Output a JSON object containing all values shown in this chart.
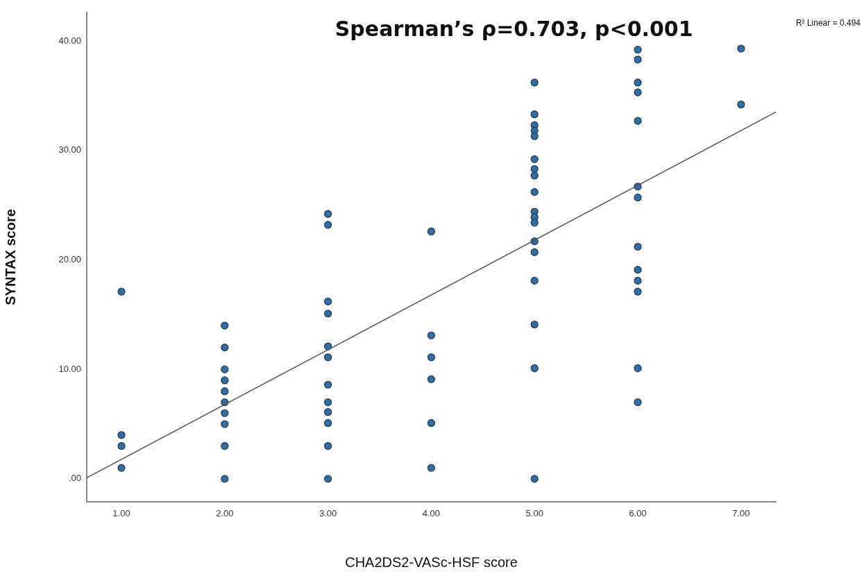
{
  "chart_data": {
    "type": "scatter",
    "xlabel": "CHA2DS2-VASc-HSF score",
    "ylabel": "SYNTAX score",
    "annotations": [
      "Spearman’s ρ=0.703, p<0.001",
      "R² Linear = 0.494"
    ],
    "xlim": [
      0.664,
      7.337
    ],
    "ylim": [
      -2.1,
      42.6
    ],
    "xticks": [
      {
        "value": 1,
        "label": "1.00"
      },
      {
        "value": 2,
        "label": "2.00"
      },
      {
        "value": 3,
        "label": "3.00"
      },
      {
        "value": 4,
        "label": "4.00"
      },
      {
        "value": 5,
        "label": "5.00"
      },
      {
        "value": 6,
        "label": "6.00"
      },
      {
        "value": 7,
        "label": "7.00"
      }
    ],
    "yticks": [
      {
        "value": 0,
        "label": ".00"
      },
      {
        "value": 10,
        "label": "10.00"
      },
      {
        "value": 20,
        "label": "20.00"
      },
      {
        "value": 30,
        "label": "30.00"
      },
      {
        "value": 40,
        "label": "40.00"
      }
    ],
    "grid": false,
    "legend": false,
    "marker": "circle",
    "series": [
      {
        "type": "scatter",
        "color": "#2f6ea6",
        "x": [
          1,
          1,
          1,
          1,
          2,
          2,
          2,
          2,
          2,
          2,
          2,
          2,
          2,
          2,
          3,
          3,
          3,
          3,
          3,
          3,
          3,
          3,
          3,
          3,
          3,
          3,
          4,
          4,
          4,
          4,
          4,
          4,
          5,
          5,
          5,
          5,
          5,
          5,
          5,
          5,
          5,
          5,
          5,
          5,
          5,
          5,
          5,
          5,
          5,
          5,
          6,
          6,
          6,
          6,
          6,
          6,
          6,
          6,
          6,
          6,
          6,
          6,
          6,
          7,
          7
        ],
        "values": [
          17.1,
          4,
          3,
          1,
          14,
          12,
          10,
          9,
          8,
          7,
          6,
          5,
          3,
          0,
          24.2,
          23.2,
          16.2,
          15.1,
          12.1,
          11.1,
          8.6,
          7,
          6.1,
          5.1,
          3,
          0,
          22.6,
          13.1,
          11.1,
          9.1,
          5.1,
          1,
          36.2,
          33.3,
          32.3,
          31.8,
          31.3,
          29.2,
          28.3,
          27.7,
          26.2,
          24.4,
          23.9,
          23.4,
          21.7,
          20.7,
          18.1,
          14.1,
          10.1,
          0,
          39.2,
          38.3,
          36.2,
          35.3,
          32.7,
          26.7,
          25.7,
          21.2,
          19.1,
          18.1,
          17.1,
          10.1,
          7,
          39.3,
          34.2
        ]
      },
      {
        "type": "line",
        "color": "#555555",
        "marker": "none",
        "line_style": "solid",
        "x": [
          0.664,
          7.337
        ],
        "values": [
          0.1,
          33.5
        ]
      }
    ]
  }
}
